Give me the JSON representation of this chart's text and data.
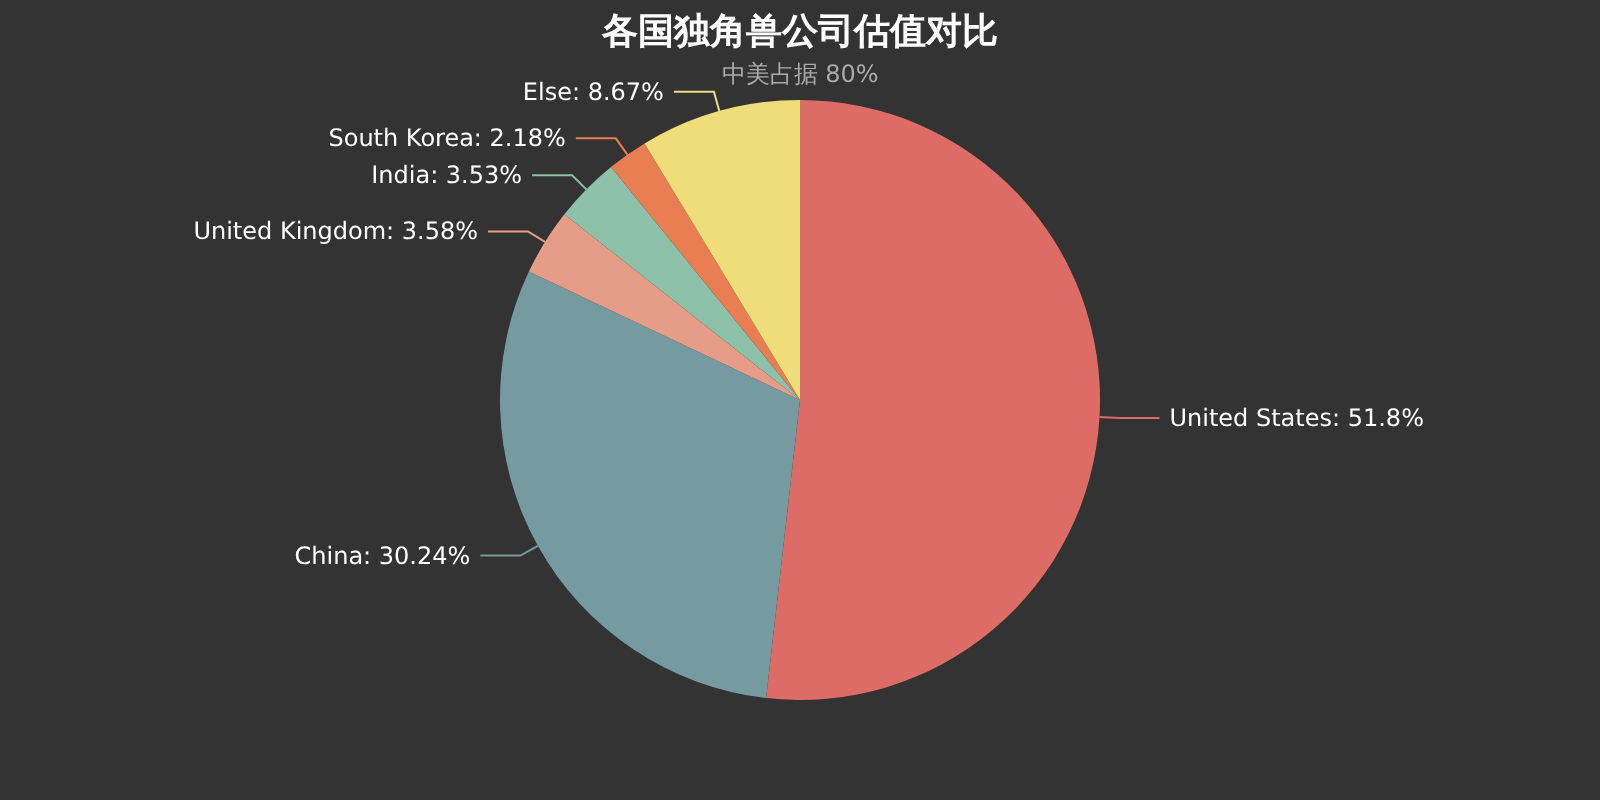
{
  "chart_data": {
    "type": "pie",
    "title": "各国独角兽公司估值对比",
    "subtitle": "中美占据 80%",
    "categories": [
      "United States",
      "China",
      "United Kingdom",
      "India",
      "South Korea",
      "Else"
    ],
    "values": [
      51.8,
      30.24,
      3.58,
      3.53,
      2.18,
      8.67
    ],
    "colors": [
      "#dd6b66",
      "#759aa0",
      "#e69d87",
      "#8dc1a9",
      "#ea7e53",
      "#eedd78"
    ],
    "value_labels": [
      ": 51.8%",
      ": 30.24%",
      ": 3.58%",
      ": 3.53%",
      ": 2.18%",
      ": 8.67%"
    ],
    "legend": false
  }
}
